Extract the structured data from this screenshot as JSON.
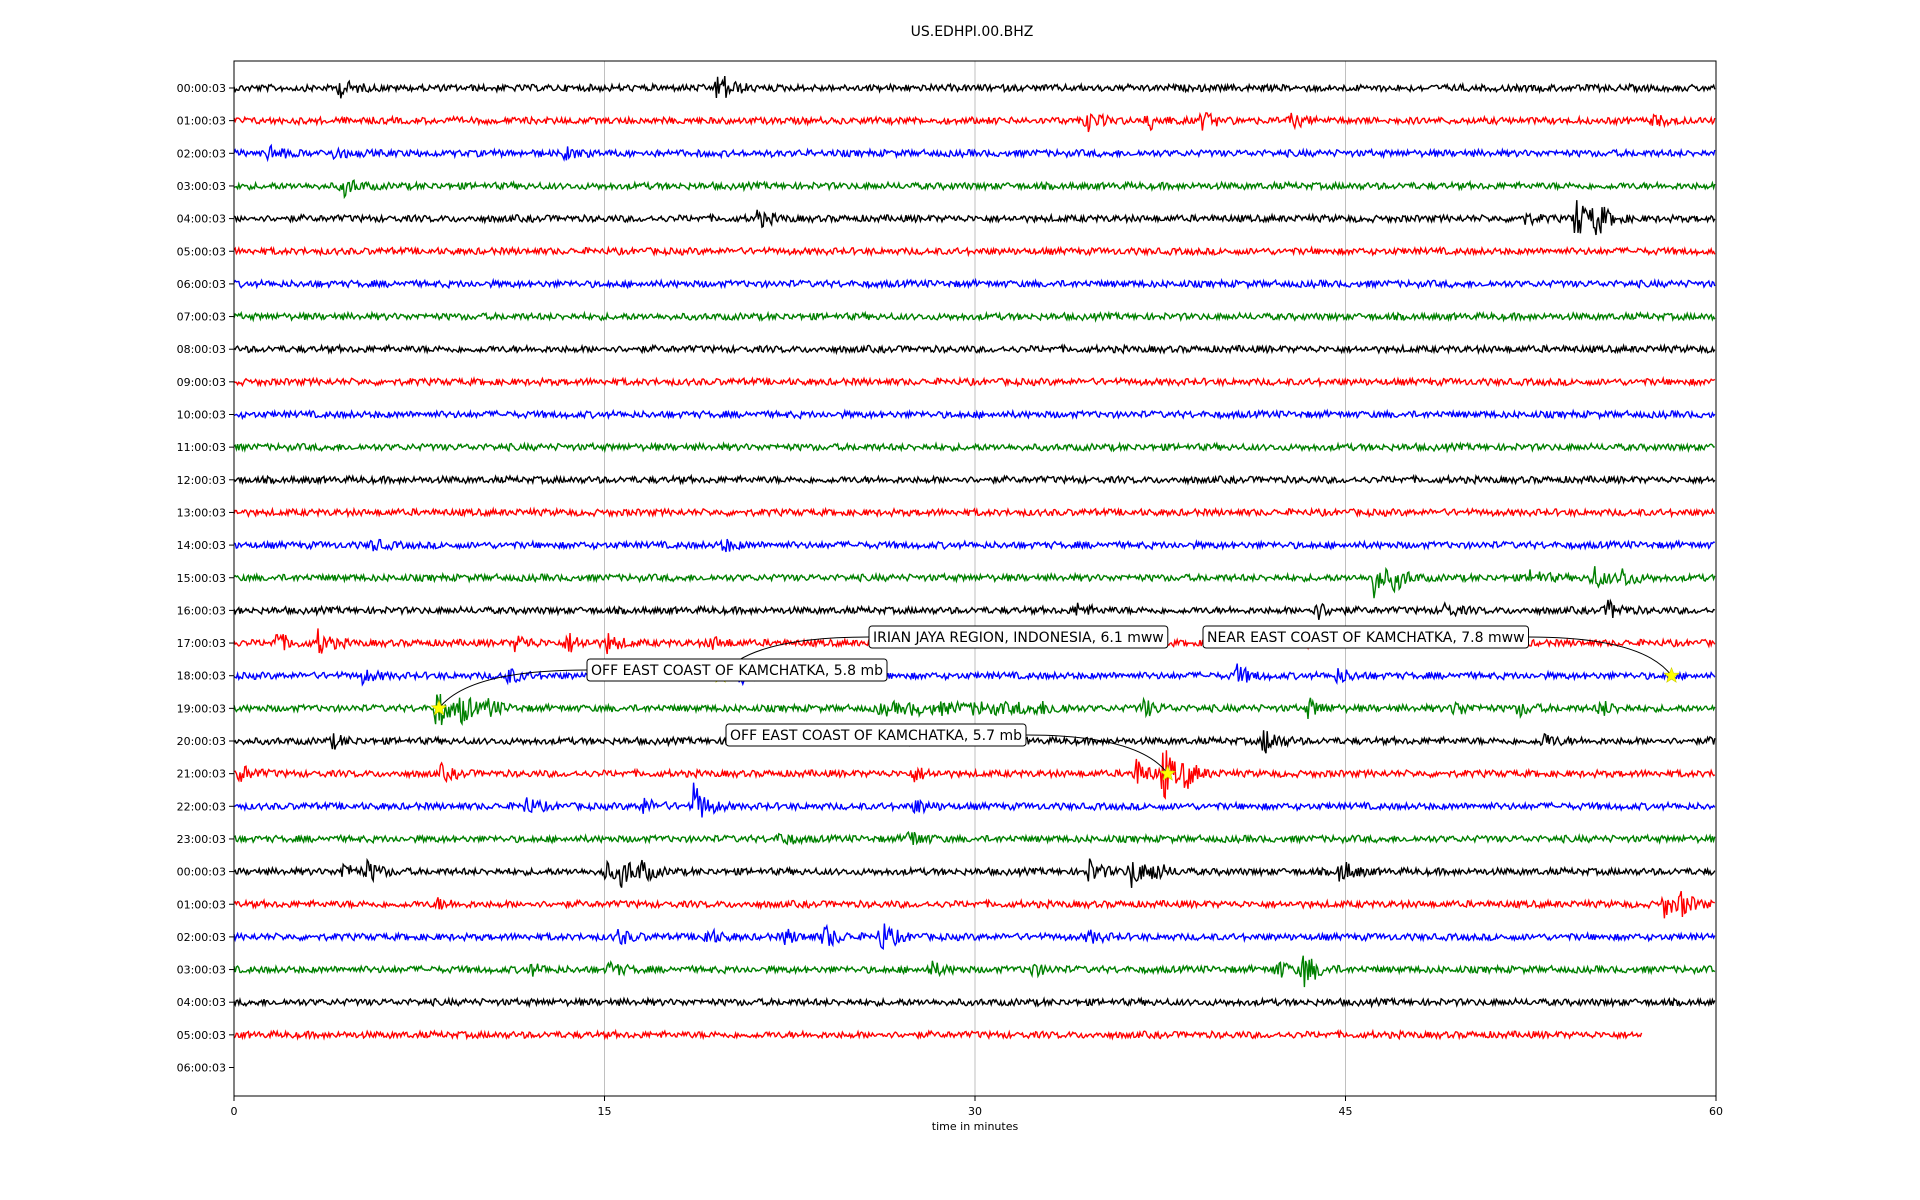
{
  "chart_data": {
    "type": "line",
    "title": "US.EDHPI.00.BHZ",
    "xlabel": "time in minutes",
    "ylabel": "",
    "xlim": [
      0,
      60
    ],
    "x_ticks": [
      "0",
      "15",
      "30",
      "45",
      "60"
    ],
    "grid": "vertical",
    "trace_colors": [
      "#000000",
      "#ff0000",
      "#0000ff",
      "#008000"
    ],
    "rows": [
      {
        "label": "00:00:03",
        "end_minute": 60,
        "bursts": [
          {
            "t": 4.3,
            "amp": 8
          },
          {
            "t": 19.6,
            "amp": 18
          }
        ]
      },
      {
        "label": "01:00:03",
        "end_minute": 60,
        "bursts": [
          {
            "t": 34.5,
            "amp": 10
          },
          {
            "t": 37,
            "amp": 9
          },
          {
            "t": 39.2,
            "amp": 8
          },
          {
            "t": 42.8,
            "amp": 6
          },
          {
            "t": 57.5,
            "amp": 5
          }
        ]
      },
      {
        "label": "02:00:03",
        "end_minute": 60,
        "bursts": [
          {
            "t": 1.4,
            "amp": 8
          },
          {
            "t": 4,
            "amp": 5
          },
          {
            "t": 13.4,
            "amp": 5
          }
        ]
      },
      {
        "label": "03:00:03",
        "end_minute": 60,
        "bursts": [
          {
            "t": 4.4,
            "amp": 10
          }
        ]
      },
      {
        "label": "04:00:03",
        "end_minute": 60,
        "bursts": [
          {
            "t": 21.2,
            "amp": 8
          },
          {
            "t": 52.1,
            "amp": 6
          },
          {
            "t": 54.3,
            "amp": 22
          },
          {
            "t": 55.1,
            "amp": 16
          }
        ]
      },
      {
        "label": "05:00:03",
        "end_minute": 60,
        "bursts": []
      },
      {
        "label": "06:00:03",
        "end_minute": 60,
        "bursts": []
      },
      {
        "label": "07:00:03",
        "end_minute": 60,
        "bursts": []
      },
      {
        "label": "08:00:03",
        "end_minute": 60,
        "bursts": []
      },
      {
        "label": "09:00:03",
        "end_minute": 60,
        "bursts": []
      },
      {
        "label": "10:00:03",
        "end_minute": 60,
        "bursts": []
      },
      {
        "label": "11:00:03",
        "end_minute": 60,
        "bursts": []
      },
      {
        "label": "12:00:03",
        "end_minute": 60,
        "bursts": []
      },
      {
        "label": "13:00:03",
        "end_minute": 60,
        "bursts": []
      },
      {
        "label": "14:00:03",
        "end_minute": 60,
        "bursts": [
          {
            "t": 5.6,
            "amp": 5
          },
          {
            "t": 19.8,
            "amp": 6
          }
        ]
      },
      {
        "label": "15:00:03",
        "end_minute": 60,
        "bursts": [
          {
            "t": 46.1,
            "amp": 20
          },
          {
            "t": 47,
            "amp": 10
          },
          {
            "t": 52.5,
            "amp": 8
          },
          {
            "t": 55,
            "amp": 12
          },
          {
            "t": 56.2,
            "amp": 9
          }
        ]
      },
      {
        "label": "16:00:03",
        "end_minute": 60,
        "bursts": [
          {
            "t": 34.1,
            "amp": 6
          },
          {
            "t": 43.8,
            "amp": 9
          },
          {
            "t": 49,
            "amp": 6
          },
          {
            "t": 55.6,
            "amp": 9
          }
        ]
      },
      {
        "label": "17:00:03",
        "end_minute": 60,
        "bursts": [
          {
            "t": 1.7,
            "amp": 10
          },
          {
            "t": 3.4,
            "amp": 12
          },
          {
            "t": 11.4,
            "amp": 8
          },
          {
            "t": 13.5,
            "amp": 10
          },
          {
            "t": 15.1,
            "amp": 9
          },
          {
            "t": 19.3,
            "amp": 6
          },
          {
            "t": 43,
            "amp": 8
          }
        ]
      },
      {
        "label": "18:00:03",
        "end_minute": 60,
        "bursts": [
          {
            "t": 5.2,
            "amp": 6
          },
          {
            "t": 11,
            "amp": 9
          },
          {
            "t": 20.5,
            "amp": 6
          },
          {
            "t": 40.6,
            "amp": 10
          },
          {
            "t": 44.7,
            "amp": 7
          }
        ]
      },
      {
        "label": "19:00:03",
        "end_minute": 60,
        "bursts": [
          {
            "t": 8.2,
            "amp": 22
          },
          {
            "t": 9.2,
            "amp": 14
          },
          {
            "t": 10.3,
            "amp": 8
          },
          {
            "t": 36.8,
            "amp": 9
          },
          {
            "t": 43.5,
            "amp": 9
          },
          {
            "t": 49.4,
            "amp": 7
          },
          {
            "t": 52,
            "amp": 7
          },
          {
            "t": 55.3,
            "amp": 8
          }
        ],
        "coda": {
          "from": 26,
          "to": 34,
          "amp": 5
        }
      },
      {
        "label": "20:00:03",
        "end_minute": 60,
        "bursts": [
          {
            "t": 4,
            "amp": 6
          },
          {
            "t": 41.7,
            "amp": 14
          },
          {
            "t": 53,
            "amp": 7
          },
          {
            "t": 59.9,
            "amp": 8
          }
        ]
      },
      {
        "label": "21:00:03",
        "end_minute": 60,
        "bursts": [
          {
            "t": 0.2,
            "amp": 9
          },
          {
            "t": 8.4,
            "amp": 7
          },
          {
            "t": 27.5,
            "amp": 7
          },
          {
            "t": 36.5,
            "amp": 14
          },
          {
            "t": 37.6,
            "amp": 28
          },
          {
            "t": 38.5,
            "amp": 12
          }
        ]
      },
      {
        "label": "22:00:03",
        "end_minute": 60,
        "bursts": [
          {
            "t": 11.8,
            "amp": 8
          },
          {
            "t": 16.5,
            "amp": 8
          },
          {
            "t": 18.6,
            "amp": 22
          },
          {
            "t": 27.6,
            "amp": 7
          }
        ]
      },
      {
        "label": "23:00:03",
        "end_minute": 60,
        "bursts": [
          {
            "t": 22.1,
            "amp": 6
          },
          {
            "t": 27.3,
            "amp": 9
          }
        ]
      },
      {
        "label": "00:00:03",
        "end_minute": 60,
        "bursts": [
          {
            "t": 4.4,
            "amp": 8
          },
          {
            "t": 5.4,
            "amp": 10
          },
          {
            "t": 15,
            "amp": 9
          },
          {
            "t": 15.7,
            "amp": 14
          },
          {
            "t": 16.5,
            "amp": 8
          },
          {
            "t": 34.6,
            "amp": 12
          },
          {
            "t": 36.3,
            "amp": 16
          },
          {
            "t": 37.2,
            "amp": 8
          },
          {
            "t": 44.8,
            "amp": 12
          }
        ]
      },
      {
        "label": "01:00:03",
        "end_minute": 60,
        "bursts": [
          {
            "t": 8.2,
            "amp": 5
          },
          {
            "t": 57.9,
            "amp": 12
          },
          {
            "t": 58.6,
            "amp": 10
          }
        ]
      },
      {
        "label": "02:00:03",
        "end_minute": 60,
        "bursts": [
          {
            "t": 15.5,
            "amp": 8
          },
          {
            "t": 19.1,
            "amp": 8
          },
          {
            "t": 22.3,
            "amp": 7
          },
          {
            "t": 23.9,
            "amp": 12
          },
          {
            "t": 26.2,
            "amp": 16
          },
          {
            "t": 34.6,
            "amp": 6
          }
        ]
      },
      {
        "label": "03:00:03",
        "end_minute": 60,
        "bursts": [
          {
            "t": 12,
            "amp": 5
          },
          {
            "t": 15.2,
            "amp": 7
          },
          {
            "t": 28.2,
            "amp": 7
          },
          {
            "t": 32.3,
            "amp": 6
          },
          {
            "t": 42.2,
            "amp": 9
          },
          {
            "t": 43.3,
            "amp": 18
          }
        ]
      },
      {
        "label": "04:00:03",
        "end_minute": 60,
        "bursts": []
      },
      {
        "label": "05:00:03",
        "end_minute": 57,
        "bursts": []
      },
      {
        "label": "06:00:03",
        "end_minute": 0,
        "bursts": []
      }
    ],
    "events": [
      {
        "label": "IRIAN JAYA REGION, INDONESIA, 6.1 mww",
        "row": 18,
        "minute": 19.7
      },
      {
        "label": "NEAR EAST COAST OF KAMCHATKA, 7.8 mww",
        "row": 18,
        "minute": 58.2
      },
      {
        "label": "OFF EAST COAST OF KAMCHATKA, 5.8 mb",
        "row": 19,
        "minute": 8.3
      },
      {
        "label": "OFF EAST COAST OF KAMCHATKA, 5.7 mb",
        "row": 21,
        "minute": 37.8
      }
    ],
    "event_marker_color": "#ffff00"
  }
}
